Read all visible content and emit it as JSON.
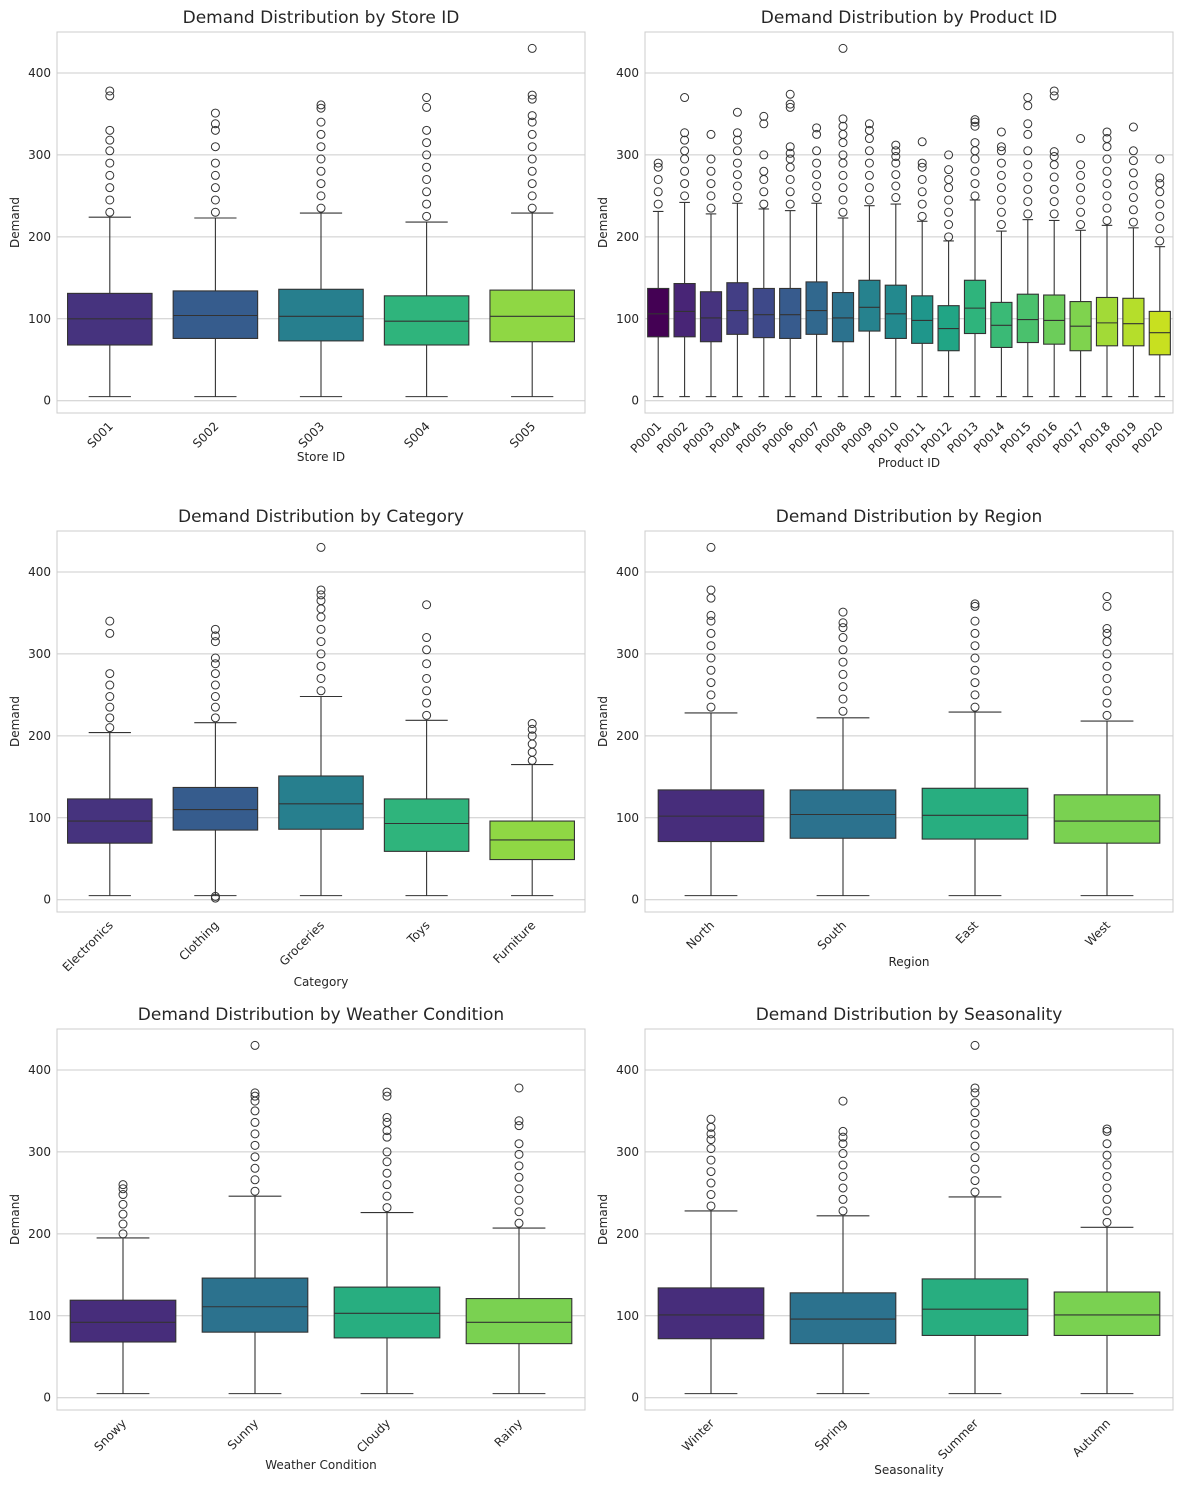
{
  "chart_data": [
    {
      "type": "box",
      "title": "Demand Distribution by Store ID",
      "xlabel": "Store ID",
      "ylabel": "Demand",
      "ylim": [
        -15,
        450
      ],
      "yticks": [
        0,
        100,
        200,
        300,
        400
      ],
      "grid": true,
      "categories": [
        "S001",
        "S002",
        "S003",
        "S004",
        "S005"
      ],
      "colors": [
        "#46337e",
        "#365c8d",
        "#277f8e",
        "#2fb47c",
        "#8fd744"
      ],
      "stats": [
        {
          "min": 5,
          "q1": 68,
          "median": 100,
          "q3": 131,
          "max": 224,
          "fliers": [
            230,
            245,
            260,
            275,
            290,
            305,
            318,
            330,
            372,
            378
          ]
        },
        {
          "min": 5,
          "q1": 76,
          "median": 104,
          "q3": 134,
          "max": 223,
          "fliers": [
            230,
            245,
            260,
            275,
            290,
            310,
            330,
            338,
            351
          ]
        },
        {
          "min": 5,
          "q1": 73,
          "median": 103,
          "q3": 136,
          "max": 229,
          "fliers": [
            235,
            250,
            265,
            280,
            295,
            310,
            325,
            340,
            357,
            361
          ]
        },
        {
          "min": 5,
          "q1": 68,
          "median": 97,
          "q3": 128,
          "max": 218,
          "fliers": [
            225,
            240,
            255,
            270,
            285,
            300,
            315,
            330,
            358,
            370
          ]
        },
        {
          "min": 5,
          "q1": 72,
          "median": 103,
          "q3": 135,
          "max": 229,
          "fliers": [
            235,
            250,
            265,
            280,
            295,
            310,
            325,
            340,
            348,
            368,
            373,
            430
          ]
        }
      ]
    },
    {
      "type": "box",
      "title": "Demand Distribution by Product ID",
      "xlabel": "Product ID",
      "ylabel": "Demand",
      "ylim": [
        -15,
        450
      ],
      "yticks": [
        0,
        100,
        200,
        300,
        400
      ],
      "grid": true,
      "categories": [
        "P0001",
        "P0002",
        "P0003",
        "P0004",
        "P0005",
        "P0006",
        "P0007",
        "P0008",
        "P0009",
        "P0010",
        "P0011",
        "P0012",
        "P0013",
        "P0014",
        "P0015",
        "P0016",
        "P0017",
        "P0018",
        "P0019",
        "P0020"
      ],
      "colors": [
        "#440154",
        "#482576",
        "#46337e",
        "#433e85",
        "#3e4989",
        "#375b8d",
        "#31688e",
        "#2c728e",
        "#26828e",
        "#23898e",
        "#1f968b",
        "#21a585",
        "#2fb47c",
        "#3aba76",
        "#4ac16d",
        "#6ccd5a",
        "#7fd34e",
        "#a2da37",
        "#b5de2b",
        "#c8e020"
      ],
      "stats": [
        {
          "min": 5,
          "q1": 78,
          "median": 106,
          "q3": 137,
          "max": 231,
          "fliers": [
            240,
            255,
            270,
            285,
            290
          ]
        },
        {
          "min": 5,
          "q1": 78,
          "median": 109,
          "q3": 143,
          "max": 242,
          "fliers": [
            250,
            265,
            280,
            295,
            305,
            318,
            327,
            370
          ]
        },
        {
          "min": 5,
          "q1": 72,
          "median": 101,
          "q3": 133,
          "max": 228,
          "fliers": [
            235,
            250,
            265,
            280,
            295,
            325
          ]
        },
        {
          "min": 5,
          "q1": 81,
          "median": 110,
          "q3": 144,
          "max": 241,
          "fliers": [
            248,
            262,
            276,
            290,
            305,
            318,
            327,
            352
          ]
        },
        {
          "min": 5,
          "q1": 77,
          "median": 105,
          "q3": 137,
          "max": 234,
          "fliers": [
            240,
            255,
            270,
            280,
            300,
            338,
            347
          ]
        },
        {
          "min": 5,
          "q1": 76,
          "median": 105,
          "q3": 137,
          "max": 232,
          "fliers": [
            240,
            255,
            270,
            285,
            295,
            302,
            310,
            358,
            362,
            374
          ]
        },
        {
          "min": 5,
          "q1": 81,
          "median": 110,
          "q3": 145,
          "max": 241,
          "fliers": [
            248,
            262,
            276,
            290,
            305,
            325,
            333
          ]
        },
        {
          "min": 5,
          "q1": 72,
          "median": 101,
          "q3": 132,
          "max": 223,
          "fliers": [
            230,
            245,
            260,
            275,
            290,
            300,
            315,
            325,
            335,
            344,
            430
          ]
        },
        {
          "min": 5,
          "q1": 85,
          "median": 114,
          "q3": 147,
          "max": 238,
          "fliers": [
            245,
            260,
            275,
            290,
            305,
            320,
            330,
            338
          ]
        },
        {
          "min": 5,
          "q1": 76,
          "median": 106,
          "q3": 141,
          "max": 240,
          "fliers": [
            248,
            262,
            276,
            290,
            298,
            305,
            312
          ]
        },
        {
          "min": 5,
          "q1": 70,
          "median": 98,
          "q3": 128,
          "max": 219,
          "fliers": [
            225,
            240,
            255,
            270,
            285,
            290,
            316
          ]
        },
        {
          "min": 5,
          "q1": 61,
          "median": 88,
          "q3": 116,
          "max": 195,
          "fliers": [
            200,
            215,
            230,
            245,
            260,
            270,
            282,
            300
          ]
        },
        {
          "min": 5,
          "q1": 82,
          "median": 113,
          "q3": 147,
          "max": 245,
          "fliers": [
            250,
            265,
            280,
            295,
            305,
            315,
            335,
            340,
            343
          ]
        },
        {
          "min": 5,
          "q1": 65,
          "median": 92,
          "q3": 120,
          "max": 207,
          "fliers": [
            215,
            230,
            245,
            260,
            275,
            290,
            305,
            310,
            328
          ]
        },
        {
          "min": 5,
          "q1": 71,
          "median": 99,
          "q3": 130,
          "max": 221,
          "fliers": [
            228,
            243,
            258,
            273,
            288,
            305,
            325,
            338,
            360,
            370
          ]
        },
        {
          "min": 5,
          "q1": 69,
          "median": 98,
          "q3": 129,
          "max": 220,
          "fliers": [
            228,
            243,
            258,
            273,
            288,
            298,
            304,
            372,
            378
          ]
        },
        {
          "min": 5,
          "q1": 61,
          "median": 91,
          "q3": 121,
          "max": 208,
          "fliers": [
            215,
            230,
            245,
            260,
            275,
            288,
            320
          ]
        },
        {
          "min": 5,
          "q1": 67,
          "median": 95,
          "q3": 126,
          "max": 214,
          "fliers": [
            220,
            235,
            250,
            265,
            280,
            295,
            310,
            320,
            328
          ]
        },
        {
          "min": 5,
          "q1": 67,
          "median": 94,
          "q3": 125,
          "max": 211,
          "fliers": [
            218,
            233,
            248,
            263,
            278,
            293,
            305,
            334
          ]
        },
        {
          "min": 5,
          "q1": 56,
          "median": 83,
          "q3": 109,
          "max": 188,
          "fliers": [
            195,
            210,
            225,
            240,
            255,
            265,
            272,
            295
          ]
        }
      ]
    },
    {
      "type": "box",
      "title": "Demand Distribution by Category",
      "xlabel": "Category",
      "ylabel": "Demand",
      "ylim": [
        -15,
        450
      ],
      "yticks": [
        0,
        100,
        200,
        300,
        400
      ],
      "grid": true,
      "categories": [
        "Electronics",
        "Clothing",
        "Groceries",
        "Toys",
        "Furniture"
      ],
      "colors": [
        "#46337e",
        "#365c8d",
        "#277f8e",
        "#2fb47c",
        "#8fd744"
      ],
      "stats": [
        {
          "min": 5,
          "q1": 69,
          "median": 96,
          "q3": 123,
          "max": 204,
          "fliers": [
            210,
            222,
            235,
            248,
            262,
            276,
            325,
            340
          ]
        },
        {
          "min": 5,
          "q1": 85,
          "median": 110,
          "q3": 137,
          "max": 216,
          "fliers": [
            2,
            4,
            222,
            235,
            248,
            262,
            276,
            288,
            295,
            315,
            322,
            330
          ]
        },
        {
          "min": 5,
          "q1": 86,
          "median": 117,
          "q3": 151,
          "max": 248,
          "fliers": [
            255,
            270,
            285,
            300,
            315,
            330,
            345,
            355,
            365,
            372,
            378,
            430
          ]
        },
        {
          "min": 5,
          "q1": 59,
          "median": 93,
          "q3": 123,
          "max": 219,
          "fliers": [
            225,
            240,
            255,
            270,
            288,
            305,
            320,
            360
          ]
        },
        {
          "min": 5,
          "q1": 49,
          "median": 73,
          "q3": 96,
          "max": 165,
          "fliers": [
            170,
            180,
            190,
            200,
            208,
            215
          ]
        }
      ]
    },
    {
      "type": "box",
      "title": "Demand Distribution by Region",
      "xlabel": "Region",
      "ylabel": "Demand",
      "ylim": [
        -15,
        450
      ],
      "yticks": [
        0,
        100,
        200,
        300,
        400
      ],
      "grid": true,
      "categories": [
        "North",
        "South",
        "East",
        "West"
      ],
      "colors": [
        "#472d7b",
        "#2c728e",
        "#28ae80",
        "#7ad151"
      ],
      "stats": [
        {
          "min": 5,
          "q1": 71,
          "median": 102,
          "q3": 134,
          "max": 228,
          "fliers": [
            235,
            250,
            265,
            280,
            295,
            310,
            325,
            340,
            347,
            368,
            378,
            430
          ]
        },
        {
          "min": 5,
          "q1": 75,
          "median": 104,
          "q3": 134,
          "max": 222,
          "fliers": [
            230,
            245,
            260,
            275,
            290,
            305,
            320,
            332,
            338,
            351
          ]
        },
        {
          "min": 5,
          "q1": 74,
          "median": 103,
          "q3": 136,
          "max": 229,
          "fliers": [
            235,
            250,
            265,
            280,
            295,
            310,
            325,
            340,
            358,
            361
          ]
        },
        {
          "min": 5,
          "q1": 69,
          "median": 96,
          "q3": 128,
          "max": 218,
          "fliers": [
            225,
            240,
            255,
            270,
            285,
            300,
            315,
            325,
            331,
            358,
            370
          ]
        }
      ]
    },
    {
      "type": "box",
      "title": "Demand Distribution by Weather Condition",
      "xlabel": "Weather Condition",
      "ylabel": "Demand",
      "ylim": [
        -15,
        450
      ],
      "yticks": [
        0,
        100,
        200,
        300,
        400
      ],
      "grid": true,
      "categories": [
        "Snowy",
        "Sunny",
        "Cloudy",
        "Rainy"
      ],
      "colors": [
        "#472d7b",
        "#2c728e",
        "#28ae80",
        "#7ad151"
      ],
      "stats": [
        {
          "min": 5,
          "q1": 68,
          "median": 92,
          "q3": 119,
          "max": 195,
          "fliers": [
            200,
            212,
            224,
            236,
            248,
            255,
            260
          ]
        },
        {
          "min": 5,
          "q1": 80,
          "median": 111,
          "q3": 146,
          "max": 246,
          "fliers": [
            252,
            266,
            280,
            294,
            308,
            322,
            336,
            350,
            362,
            368,
            372,
            430
          ]
        },
        {
          "min": 5,
          "q1": 73,
          "median": 103,
          "q3": 135,
          "max": 226,
          "fliers": [
            232,
            246,
            260,
            274,
            288,
            300,
            318,
            326,
            336,
            342,
            368,
            373
          ]
        },
        {
          "min": 5,
          "q1": 66,
          "median": 92,
          "q3": 121,
          "max": 207,
          "fliers": [
            213,
            227,
            241,
            255,
            269,
            283,
            297,
            310,
            332,
            338,
            378
          ]
        }
      ]
    },
    {
      "type": "box",
      "title": "Demand Distribution by Seasonality",
      "xlabel": "Seasonality",
      "ylabel": "Demand",
      "ylim": [
        -15,
        450
      ],
      "yticks": [
        0,
        100,
        200,
        300,
        400
      ],
      "grid": true,
      "categories": [
        "Winter",
        "Spring",
        "Summer",
        "Autumn"
      ],
      "colors": [
        "#472d7b",
        "#2c728e",
        "#28ae80",
        "#7ad151"
      ],
      "stats": [
        {
          "min": 5,
          "q1": 72,
          "median": 101,
          "q3": 134,
          "max": 228,
          "fliers": [
            234,
            248,
            262,
            276,
            290,
            304,
            315,
            322,
            330,
            340
          ]
        },
        {
          "min": 5,
          "q1": 66,
          "median": 96,
          "q3": 128,
          "max": 222,
          "fliers": [
            228,
            242,
            256,
            270,
            284,
            298,
            310,
            318,
            325,
            362
          ]
        },
        {
          "min": 5,
          "q1": 76,
          "median": 108,
          "q3": 145,
          "max": 245,
          "fliers": [
            251,
            265,
            279,
            293,
            307,
            321,
            335,
            348,
            360,
            372,
            378,
            430
          ]
        },
        {
          "min": 5,
          "q1": 76,
          "median": 101,
          "q3": 129,
          "max": 208,
          "fliers": [
            214,
            228,
            242,
            256,
            270,
            284,
            296,
            310,
            325,
            328
          ]
        }
      ]
    }
  ]
}
